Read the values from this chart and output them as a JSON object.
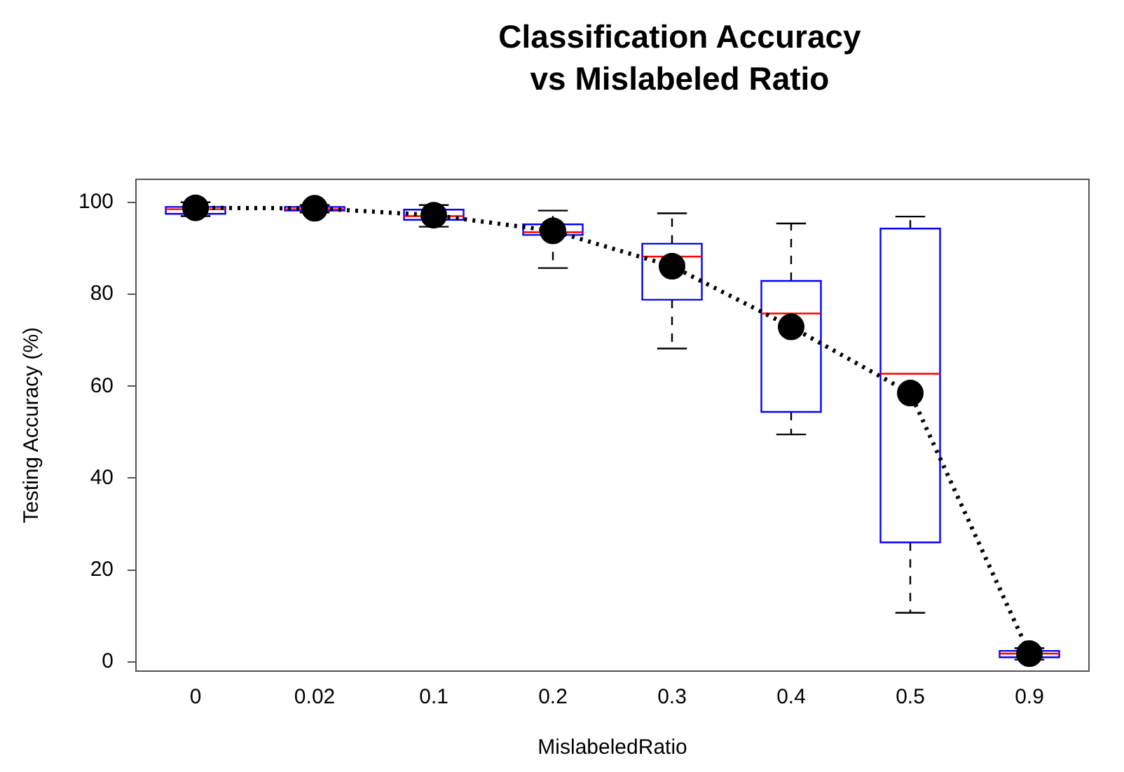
{
  "chart_data": {
    "type": "box",
    "title": "Classification Accuracy vs Mislabeled Ratio",
    "xlabel": "MislabeledRatio",
    "ylabel": "Testing Accuracy (%)",
    "categories": [
      "0",
      "0.02",
      "0.1",
      "0.2",
      "0.3",
      "0.4",
      "0.5",
      "0.9"
    ],
    "ylim": [
      -2,
      105
    ],
    "yticks": [
      0,
      20,
      40,
      60,
      80,
      100
    ],
    "grid": false,
    "legend": false,
    "series": [
      {
        "type": "box",
        "color": "#0000ff",
        "boxes": [
          {
            "low": 97,
            "q1": 97.5,
            "median": 98.5,
            "q3": 99,
            "high": 100
          },
          {
            "low": 97.8,
            "q1": 98.2,
            "median": 98.5,
            "q3": 99,
            "high": 99.4
          },
          {
            "low": 94.7,
            "q1": 96.2,
            "median": 97,
            "q3": 98.4,
            "high": 99.4
          },
          {
            "low": 85.7,
            "q1": 92.9,
            "median": 93.5,
            "q3": 95.2,
            "high": 98.2
          },
          {
            "low": 68.2,
            "q1": 78.8,
            "median": 88.2,
            "q3": 91,
            "high": 97.6
          },
          {
            "low": 49.5,
            "q1": 54.4,
            "median": 75.8,
            "q3": 82.9,
            "high": 95.4
          },
          {
            "low": 10.7,
            "q1": 26,
            "median": 62.7,
            "q3": 94.3,
            "high": 96.9
          },
          {
            "low": 0.5,
            "q1": 1,
            "median": 1.8,
            "q3": 2.4,
            "high": 3
          }
        ]
      },
      {
        "type": "line",
        "color": "#000000",
        "marker": "circle",
        "line_style": "dotted",
        "values": [
          98.8,
          98.7,
          97.2,
          93.8,
          86.1,
          72.9,
          58.5,
          1.8
        ]
      }
    ]
  }
}
